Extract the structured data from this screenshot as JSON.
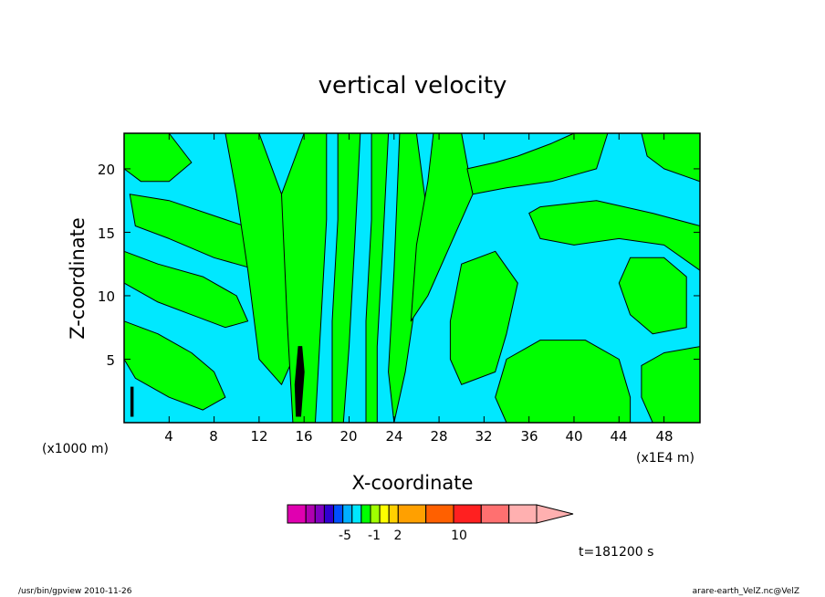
{
  "chart_data": {
    "type": "heatmap",
    "title": "vertical velocity",
    "xlabel": "X-coordinate",
    "ylabel": "Z-coordinate",
    "x_unit_left": "(x1000 m)",
    "x_unit_right": "(x1E4 m)",
    "xlim": [
      0,
      51.2
    ],
    "ylim": [
      0,
      22.8
    ],
    "x_ticks": [
      4,
      8,
      12,
      16,
      20,
      24,
      28,
      32,
      36,
      40,
      44,
      48
    ],
    "x_tick_labels": [
      "4",
      "8",
      "12",
      "16",
      "20",
      "24",
      "28",
      "32",
      "36",
      "40",
      "44",
      "48"
    ],
    "y_ticks": [
      5,
      10,
      15,
      20
    ],
    "y_tick_labels": [
      "5",
      "10",
      "15",
      "20"
    ],
    "time_label": "t=181200 s",
    "colors": {
      "background_field": "#00e8ff",
      "positive_field": "#00ff00",
      "contour_line": "#000000",
      "strong_updraft": "#000000"
    },
    "regions": [
      {
        "fill": "positive",
        "points": [
          [
            0,
            22.8
          ],
          [
            4,
            22.8
          ],
          [
            6,
            20.5
          ],
          [
            4,
            19
          ],
          [
            1.5,
            19
          ],
          [
            0,
            20
          ]
        ]
      },
      {
        "fill": "positive",
        "points": [
          [
            0.5,
            18
          ],
          [
            4,
            17.5
          ],
          [
            9,
            16
          ],
          [
            14,
            14.5
          ],
          [
            15,
            12
          ],
          [
            12,
            12
          ],
          [
            8,
            13
          ],
          [
            4,
            14.5
          ],
          [
            1,
            15.5
          ]
        ]
      },
      {
        "fill": "positive",
        "points": [
          [
            0,
            13.5
          ],
          [
            3,
            12.5
          ],
          [
            7,
            11.5
          ],
          [
            10,
            10
          ],
          [
            11,
            8
          ],
          [
            9,
            7.5
          ],
          [
            6,
            8.5
          ],
          [
            3,
            9.5
          ],
          [
            0,
            11
          ]
        ]
      },
      {
        "fill": "positive",
        "points": [
          [
            0,
            8
          ],
          [
            3,
            7
          ],
          [
            6,
            5.5
          ],
          [
            8,
            4
          ],
          [
            9,
            2
          ],
          [
            7,
            1
          ],
          [
            4,
            2
          ],
          [
            1,
            3.5
          ],
          [
            0,
            5
          ]
        ]
      },
      {
        "fill": "positive",
        "points": [
          [
            9,
            22.8
          ],
          [
            12,
            22.8
          ],
          [
            14,
            18
          ],
          [
            15,
            12
          ],
          [
            15.5,
            6
          ],
          [
            14,
            3
          ],
          [
            12,
            5
          ],
          [
            11,
            12
          ],
          [
            10,
            18
          ]
        ]
      },
      {
        "fill": "positive",
        "points": [
          [
            14,
            18
          ],
          [
            16,
            22.8
          ],
          [
            18,
            22.8
          ],
          [
            18,
            16
          ],
          [
            17.5,
            8
          ],
          [
            17,
            0
          ],
          [
            15,
            0
          ],
          [
            14.5,
            8
          ]
        ]
      },
      {
        "fill": "positive",
        "points": [
          [
            19,
            22.8
          ],
          [
            21,
            22.8
          ],
          [
            20.5,
            14
          ],
          [
            20,
            6
          ],
          [
            19.5,
            0
          ],
          [
            18.5,
            0
          ],
          [
            18.5,
            8
          ],
          [
            19,
            16
          ]
        ]
      },
      {
        "fill": "positive",
        "points": [
          [
            22,
            22.8
          ],
          [
            23.5,
            22.8
          ],
          [
            23,
            14
          ],
          [
            22.5,
            6
          ],
          [
            22.5,
            0
          ],
          [
            21.5,
            0
          ],
          [
            21.5,
            8
          ],
          [
            22,
            16
          ]
        ]
      },
      {
        "fill": "positive",
        "points": [
          [
            24.5,
            22.8
          ],
          [
            26,
            22.8
          ],
          [
            27,
            16
          ],
          [
            26,
            10
          ],
          [
            25,
            4
          ],
          [
            24,
            0
          ],
          [
            23.5,
            4
          ],
          [
            24,
            12
          ]
        ]
      },
      {
        "fill": "positive",
        "points": [
          [
            27.5,
            22.8
          ],
          [
            30,
            22.8
          ],
          [
            31,
            18
          ],
          [
            29,
            14
          ],
          [
            27,
            10
          ],
          [
            25.5,
            8
          ],
          [
            26,
            14
          ],
          [
            27,
            19
          ]
        ]
      },
      {
        "fill": "positive",
        "points": [
          [
            30.5,
            20
          ],
          [
            33,
            20.5
          ],
          [
            35,
            21
          ],
          [
            38,
            22
          ],
          [
            40,
            22.8
          ],
          [
            43,
            22.8
          ],
          [
            42,
            20
          ],
          [
            38,
            19
          ],
          [
            34,
            18.5
          ],
          [
            31,
            18
          ]
        ]
      },
      {
        "fill": "positive",
        "points": [
          [
            29,
            8
          ],
          [
            30,
            12.5
          ],
          [
            33,
            13.5
          ],
          [
            35,
            11
          ],
          [
            34,
            7
          ],
          [
            33,
            4
          ],
          [
            30,
            3
          ],
          [
            29,
            5
          ]
        ]
      },
      {
        "fill": "positive",
        "points": [
          [
            33,
            2
          ],
          [
            34,
            5
          ],
          [
            37,
            6.5
          ],
          [
            41,
            6.5
          ],
          [
            44,
            5
          ],
          [
            45,
            2
          ],
          [
            45,
            0
          ],
          [
            34,
            0
          ]
        ]
      },
      {
        "fill": "positive",
        "points": [
          [
            36,
            16.5
          ],
          [
            37,
            17
          ],
          [
            42,
            17.5
          ],
          [
            47,
            16.5
          ],
          [
            51.2,
            15.5
          ],
          [
            51.2,
            12
          ],
          [
            48,
            14
          ],
          [
            44,
            14.5
          ],
          [
            40,
            14
          ],
          [
            37,
            14.5
          ]
        ]
      },
      {
        "fill": "positive",
        "points": [
          [
            44,
            11
          ],
          [
            45,
            13
          ],
          [
            48,
            13
          ],
          [
            50,
            11.5
          ],
          [
            50,
            7.5
          ],
          [
            47,
            7
          ],
          [
            45,
            8.5
          ]
        ]
      },
      {
        "fill": "positive",
        "points": [
          [
            46,
            22.8
          ],
          [
            51.2,
            22.8
          ],
          [
            51.2,
            19
          ],
          [
            48,
            20
          ],
          [
            46.5,
            21
          ]
        ]
      },
      {
        "fill": "positive",
        "points": [
          [
            46,
            4.5
          ],
          [
            48,
            5.5
          ],
          [
            51.2,
            6
          ],
          [
            51.2,
            0
          ],
          [
            47,
            0
          ],
          [
            46,
            2
          ]
        ]
      }
    ],
    "strong_updraft": [
      {
        "points": [
          [
            15.5,
            6
          ],
          [
            15.8,
            6
          ],
          [
            16,
            4
          ],
          [
            15.7,
            0.5
          ],
          [
            15.3,
            0.5
          ],
          [
            15.2,
            3
          ]
        ]
      },
      {
        "points": [
          [
            0.6,
            2.8
          ],
          [
            0.8,
            2.8
          ],
          [
            0.8,
            0.5
          ],
          [
            0.6,
            0.5
          ]
        ]
      }
    ],
    "colorbar": {
      "colors": [
        "#e000b0",
        "#b000b0",
        "#8000c0",
        "#3000d0",
        "#0050ff",
        "#00b0ff",
        "#00e8ff",
        "#00ff00",
        "#a0ff00",
        "#ffff00",
        "#ffd000",
        "#ffa000",
        "#ff6000",
        "#ff2020",
        "#ff7070",
        "#ffb0b0"
      ],
      "bounds": [
        -8,
        -6,
        -5,
        -4,
        -3,
        -2,
        -1,
        0,
        1,
        2,
        3,
        4,
        7,
        10,
        13,
        16,
        19
      ],
      "labels": [
        "-5",
        "-1",
        "2",
        "10"
      ],
      "label_values": [
        -5,
        -1,
        2,
        10
      ],
      "extend": "max"
    }
  },
  "footer": {
    "left": "/usr/bin/gpview   2010-11-26",
    "right": "arare-earth_VelZ.nc@VelZ"
  }
}
